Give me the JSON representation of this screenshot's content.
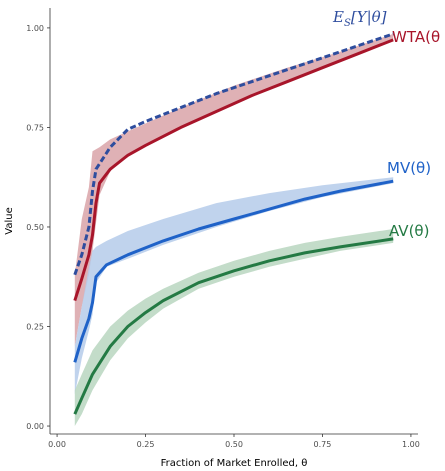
{
  "chart_data": {
    "type": "line",
    "title": "",
    "xlabel": "Fraction of Market Enrolled, θ",
    "ylabel": "Value",
    "xlim": [
      -0.02,
      1.02
    ],
    "ylim": [
      -0.02,
      1.05
    ],
    "xticks": [
      0.0,
      0.25,
      0.5,
      0.75,
      1.0
    ],
    "xtick_labels": [
      "0.00",
      "0.25",
      "0.50",
      "0.75",
      "1.00"
    ],
    "yticks": [
      0.0,
      0.25,
      0.5,
      0.75,
      1.0
    ],
    "ytick_labels": [
      "0.00",
      "0.25",
      "0.50",
      "0.75",
      "1.00"
    ],
    "grid": false,
    "legend": "none",
    "series": [
      {
        "name": "WTA(θ",
        "color": "#a8152a",
        "band_color": "#d9a3a8",
        "dash": false,
        "points": [
          [
            0.05,
            0.315
          ],
          [
            0.07,
            0.37
          ],
          [
            0.09,
            0.43
          ],
          [
            0.1,
            0.48
          ],
          [
            0.11,
            0.56
          ],
          [
            0.12,
            0.61
          ],
          [
            0.15,
            0.645
          ],
          [
            0.2,
            0.68
          ],
          [
            0.25,
            0.705
          ],
          [
            0.35,
            0.75
          ],
          [
            0.45,
            0.79
          ],
          [
            0.55,
            0.83
          ],
          [
            0.65,
            0.865
          ],
          [
            0.75,
            0.9
          ],
          [
            0.85,
            0.935
          ],
          [
            0.95,
            0.97
          ]
        ],
        "band": [
          [
            0.05,
            0.2,
            0.38
          ],
          [
            0.07,
            0.3,
            0.52
          ],
          [
            0.09,
            0.38,
            0.6
          ],
          [
            0.1,
            0.44,
            0.69
          ],
          [
            0.12,
            0.58,
            0.7
          ],
          [
            0.15,
            0.64,
            0.72
          ],
          [
            0.2,
            0.68,
            0.74
          ],
          [
            0.25,
            0.705,
            0.76
          ],
          [
            0.35,
            0.75,
            0.8
          ],
          [
            0.5,
            0.81,
            0.855
          ],
          [
            0.65,
            0.865,
            0.9
          ],
          [
            0.8,
            0.915,
            0.94
          ],
          [
            0.95,
            0.97,
            0.985
          ]
        ]
      },
      {
        "name": "E_S[Y|θ]",
        "color": "#2e4d9e",
        "dash": true,
        "points": [
          [
            0.05,
            0.38
          ],
          [
            0.07,
            0.43
          ],
          [
            0.09,
            0.5
          ],
          [
            0.1,
            0.59
          ],
          [
            0.11,
            0.645
          ],
          [
            0.15,
            0.7
          ],
          [
            0.2,
            0.745
          ],
          [
            0.25,
            0.765
          ],
          [
            0.35,
            0.8
          ],
          [
            0.45,
            0.835
          ],
          [
            0.55,
            0.865
          ],
          [
            0.65,
            0.895
          ],
          [
            0.75,
            0.925
          ],
          [
            0.85,
            0.955
          ],
          [
            0.95,
            0.985
          ]
        ]
      },
      {
        "name": "MV(θ)",
        "color": "#1f62c8",
        "band_color": "#b5cbea",
        "dash": false,
        "points": [
          [
            0.05,
            0.16
          ],
          [
            0.07,
            0.22
          ],
          [
            0.09,
            0.27
          ],
          [
            0.1,
            0.31
          ],
          [
            0.11,
            0.375
          ],
          [
            0.14,
            0.405
          ],
          [
            0.2,
            0.43
          ],
          [
            0.3,
            0.465
          ],
          [
            0.4,
            0.495
          ],
          [
            0.5,
            0.52
          ],
          [
            0.6,
            0.545
          ],
          [
            0.7,
            0.57
          ],
          [
            0.8,
            0.59
          ],
          [
            0.95,
            0.615
          ]
        ],
        "band": [
          [
            0.05,
            0.08,
            0.2
          ],
          [
            0.07,
            0.17,
            0.3
          ],
          [
            0.09,
            0.24,
            0.4
          ],
          [
            0.1,
            0.28,
            0.44
          ],
          [
            0.11,
            0.36,
            0.45
          ],
          [
            0.14,
            0.4,
            0.465
          ],
          [
            0.2,
            0.42,
            0.49
          ],
          [
            0.3,
            0.455,
            0.52
          ],
          [
            0.45,
            0.5,
            0.56
          ],
          [
            0.6,
            0.54,
            0.585
          ],
          [
            0.75,
            0.575,
            0.605
          ],
          [
            0.95,
            0.61,
            0.625
          ]
        ]
      },
      {
        "name": "AV(θ)",
        "color": "#247a44",
        "band_color": "#b8d6bf",
        "dash": false,
        "points": [
          [
            0.05,
            0.03
          ],
          [
            0.07,
            0.07
          ],
          [
            0.1,
            0.13
          ],
          [
            0.15,
            0.2
          ],
          [
            0.2,
            0.25
          ],
          [
            0.25,
            0.285
          ],
          [
            0.3,
            0.315
          ],
          [
            0.4,
            0.36
          ],
          [
            0.5,
            0.39
          ],
          [
            0.6,
            0.415
          ],
          [
            0.7,
            0.435
          ],
          [
            0.8,
            0.45
          ],
          [
            0.95,
            0.47
          ]
        ],
        "band": [
          [
            0.05,
            0.0,
            0.09
          ],
          [
            0.07,
            0.03,
            0.13
          ],
          [
            0.1,
            0.09,
            0.19
          ],
          [
            0.15,
            0.165,
            0.25
          ],
          [
            0.2,
            0.22,
            0.29
          ],
          [
            0.25,
            0.26,
            0.32
          ],
          [
            0.3,
            0.295,
            0.345
          ],
          [
            0.4,
            0.345,
            0.385
          ],
          [
            0.5,
            0.375,
            0.415
          ],
          [
            0.6,
            0.4,
            0.44
          ],
          [
            0.7,
            0.42,
            0.46
          ],
          [
            0.8,
            0.44,
            0.475
          ],
          [
            0.95,
            0.46,
            0.495
          ]
        ]
      }
    ],
    "labels": {
      "wta": "WTA(θ",
      "es_main": "E",
      "es_sub": "S",
      "es_rest": "[Y|θ]",
      "mv": "MV(θ)",
      "av": "AV(θ)"
    }
  }
}
